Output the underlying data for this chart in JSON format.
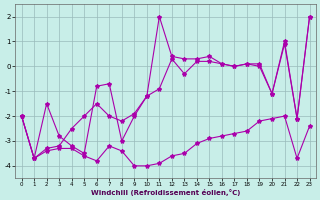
{
  "x": [
    0,
    1,
    2,
    3,
    4,
    5,
    6,
    7,
    8,
    9,
    10,
    11,
    12,
    13,
    14,
    15,
    16,
    17,
    18,
    19,
    20,
    21,
    22,
    23
  ],
  "line_zigzag": [
    -2.0,
    -3.7,
    -1.5,
    -2.8,
    -3.2,
    -3.5,
    -0.8,
    -0.7,
    -3.0,
    -2.0,
    -1.2,
    2.0,
    0.4,
    0.3,
    0.3,
    0.4,
    0.1,
    0.0,
    0.1,
    0.1,
    -1.1,
    0.9,
    -2.1,
    2.0
  ],
  "line_smooth": [
    -2.0,
    -3.7,
    -3.3,
    -3.2,
    -2.5,
    -2.0,
    -1.5,
    -2.0,
    -2.2,
    -1.9,
    -1.2,
    -0.9,
    0.3,
    -0.3,
    0.2,
    0.2,
    0.1,
    0.0,
    0.1,
    0.0,
    -1.1,
    1.0,
    -2.1,
    2.0
  ],
  "line_bottom": [
    -2.0,
    -3.7,
    -3.4,
    -3.3,
    -3.3,
    -3.6,
    -3.8,
    -3.2,
    -3.4,
    -4.0,
    -4.0,
    -3.9,
    -3.6,
    -3.5,
    -3.1,
    -2.9,
    -2.8,
    -2.7,
    -2.6,
    -2.2,
    -2.1,
    -2.0,
    -3.7,
    -2.4
  ],
  "bg_color": "#c8eee8",
  "line_color": "#aa00aa",
  "grid_color": "#99bbbb",
  "xlabel": "Windchill (Refroidissement éolien,°C)",
  "ylim": [
    -4.5,
    2.5
  ],
  "xlim": [
    -0.5,
    23.5
  ],
  "yticks": [
    -4,
    -3,
    -2,
    -1,
    0,
    1,
    2
  ],
  "xticks": [
    0,
    1,
    2,
    3,
    4,
    5,
    6,
    7,
    8,
    9,
    10,
    11,
    12,
    13,
    14,
    15,
    16,
    17,
    18,
    19,
    20,
    21,
    22,
    23
  ]
}
